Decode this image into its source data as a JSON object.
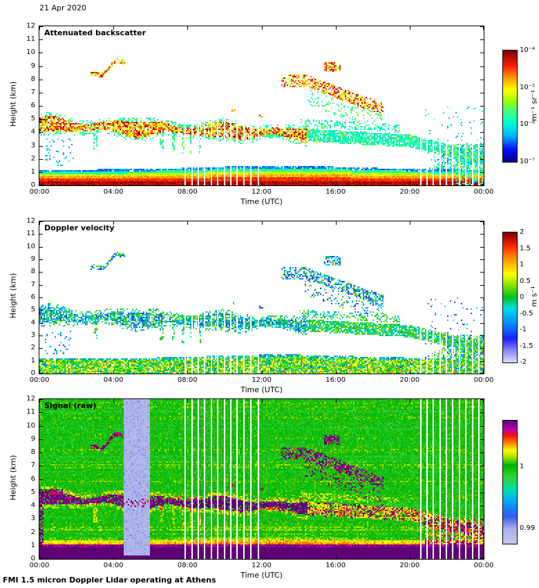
{
  "header": {
    "date": "21 Apr 2020"
  },
  "footer": {
    "text": "FMI 1.5 micron Doppler Lidar operating at Athens"
  },
  "chart_data": [
    {
      "type": "heatmap",
      "title": "Attenuated backscatter",
      "xlabel": "Time (UTC)",
      "ylabel": "Height (km)",
      "x_ticks": [
        "00:00",
        "04:00",
        "08:00",
        "12:00",
        "16:00",
        "20:00",
        "00:00"
      ],
      "x_range_hours": [
        0,
        24
      ],
      "y_ticks": [
        0,
        1,
        2,
        3,
        4,
        5,
        6,
        7,
        8,
        9,
        10,
        11,
        12
      ],
      "ylim": [
        0,
        12
      ],
      "grid": false,
      "colorbar": {
        "label": "m⁻¹ sr⁻¹",
        "ticks": [
          "10⁻⁴",
          "10⁻⁵",
          "10⁻⁶",
          "10⁻⁷"
        ],
        "tick_pos": [
          1,
          0.6667,
          0.3333,
          0
        ],
        "scale": "log",
        "range_log10": [
          -7,
          -4
        ],
        "colormap": [
          [
            0,
            "#000089"
          ],
          [
            0.11,
            "#0010ff"
          ],
          [
            0.23,
            "#00b2ff"
          ],
          [
            0.35,
            "#00ffd0"
          ],
          [
            0.45,
            "#40ff80"
          ],
          [
            0.55,
            "#a0ff00"
          ],
          [
            0.65,
            "#ffff00"
          ],
          [
            0.75,
            "#ffa000"
          ],
          [
            0.86,
            "#ff2000"
          ],
          [
            1,
            "#7f0000"
          ]
        ]
      },
      "features": {
        "surface_aerosol_layer": {
          "top_km": 1.1,
          "midday_peak_top_km": 1.35,
          "description": "strong red/orange backscatter in lowest ~1 km all day, blue upper edge"
        },
        "elevated_aerosol_layer": {
          "time_h": [
            0,
            14.5
          ],
          "start_height_km": 4.55,
          "descent_km_per_h": 0.045,
          "half_width_km": 0.5
        },
        "secondary_layer_left_edge": {
          "time_h": [
            0,
            1.3
          ],
          "height_km": 5.05
        },
        "diffuse_descending_layer": {
          "time_h": [
            7.5,
            24.0
          ],
          "start_height_km": 4.35,
          "end_height_km": 2.0
        },
        "fall_streak_times_h": [
          3.0,
          6.6,
          7.25,
          7.8,
          8.2,
          8.65
        ],
        "high_cloud_patches": [
          {
            "time_h": [
              2.75,
              4.6
            ],
            "height_km": [
              8.1,
              9.5
            ]
          },
          {
            "time_h": [
              13.1,
              14.3
            ],
            "height_km": [
              7.4,
              8.4
            ]
          },
          {
            "time_h": [
              14.3,
              18.6
            ],
            "height_km": [
              5.5,
              9.2
            ]
          }
        ],
        "evening_mixed_region": {
          "time_h": [
            20.8,
            24.0
          ],
          "max_height_km": 3.2
        },
        "data_gap_times_h": [
          7.85,
          8.2,
          8.55,
          8.9,
          9.25,
          9.6,
          9.95,
          10.3,
          10.65,
          11.0,
          11.4,
          11.8,
          20.55,
          20.9,
          21.25,
          21.6,
          21.95,
          22.3,
          22.65,
          23.0,
          23.35,
          23.7
        ]
      }
    },
    {
      "type": "heatmap",
      "title": "Doppler velocity",
      "xlabel": "Time (UTC)",
      "ylabel": "Height (km)",
      "x_ticks": [
        "00:00",
        "04:00",
        "08:00",
        "12:00",
        "16:00",
        "20:00",
        "00:00"
      ],
      "x_range_hours": [
        0,
        24
      ],
      "y_ticks": [
        0,
        1,
        2,
        3,
        4,
        5,
        6,
        7,
        8,
        9,
        10,
        11,
        12
      ],
      "ylim": [
        0,
        12
      ],
      "grid": false,
      "colorbar": {
        "label": "m s⁻¹",
        "ticks": [
          "2",
          "1.5",
          "1",
          "0.5",
          "0",
          "-0.5",
          "-1",
          "-1.5",
          "-2"
        ],
        "tick_pos": [
          1,
          0.875,
          0.75,
          0.625,
          0.5,
          0.375,
          0.25,
          0.125,
          0
        ],
        "scale": "linear",
        "range": [
          -2,
          2
        ],
        "colormap": [
          [
            0,
            "#dcdcff"
          ],
          [
            0.08,
            "#9090ff"
          ],
          [
            0.18,
            "#2020ff"
          ],
          [
            0.3,
            "#0090ff"
          ],
          [
            0.42,
            "#00e0e0"
          ],
          [
            0.5,
            "#00c020"
          ],
          [
            0.58,
            "#70e000"
          ],
          [
            0.68,
            "#ffff00"
          ],
          [
            0.8,
            "#ff9000"
          ],
          [
            0.9,
            "#ff2000"
          ],
          [
            1,
            "#800000"
          ]
        ]
      },
      "features": {
        "note": "velocity speckle (mostly -1.5 to +1 m/s) wherever backscatter panel has signal; green/yellow in boundary layer, blue/cyan in elevated layers and clouds"
      }
    },
    {
      "type": "heatmap",
      "title": "Signal (raw)",
      "xlabel": "Time (UTC)",
      "ylabel": "Height (km)",
      "x_ticks": [
        "00:00",
        "04:00",
        "08:00",
        "12:00",
        "16:00",
        "20:00",
        "00:00"
      ],
      "x_range_hours": [
        0,
        24
      ],
      "y_ticks": [
        0,
        1,
        2,
        3,
        4,
        5,
        6,
        7,
        8,
        9,
        10,
        11,
        12
      ],
      "ylim": [
        0,
        12
      ],
      "grid": false,
      "colorbar": {
        "label": "",
        "ticks": [
          "1",
          "0.99"
        ],
        "tick_pos": [
          0.625,
          0.125
        ],
        "scale": "linear",
        "range": [
          0.9875,
          1.0075
        ],
        "colormap": [
          [
            0,
            "#c6c6ee"
          ],
          [
            0.12,
            "#a8b0ea"
          ],
          [
            0.22,
            "#3858f0"
          ],
          [
            0.33,
            "#00a0ff"
          ],
          [
            0.44,
            "#00e0b0"
          ],
          [
            0.55,
            "#30d030"
          ],
          [
            0.64,
            "#00b400"
          ],
          [
            0.7,
            "#a0e000"
          ],
          [
            0.76,
            "#ffff00"
          ],
          [
            0.82,
            "#ff8000"
          ],
          [
            0.88,
            "#ff1000"
          ],
          [
            0.93,
            "#b400b4"
          ],
          [
            1,
            "#600078"
          ]
        ]
      },
      "features": {
        "background": "green speckle noise (signal ~1) over whole panel with horizontal banding",
        "saturated_below_km": 1.0,
        "calibration_stripe_time_h": [
          4.55,
          5.95
        ],
        "left_edge_purple_column_km": 5.2,
        "note": "purple = saturated returns (surface band, clouds); white vertical lines = data gaps"
      }
    }
  ]
}
